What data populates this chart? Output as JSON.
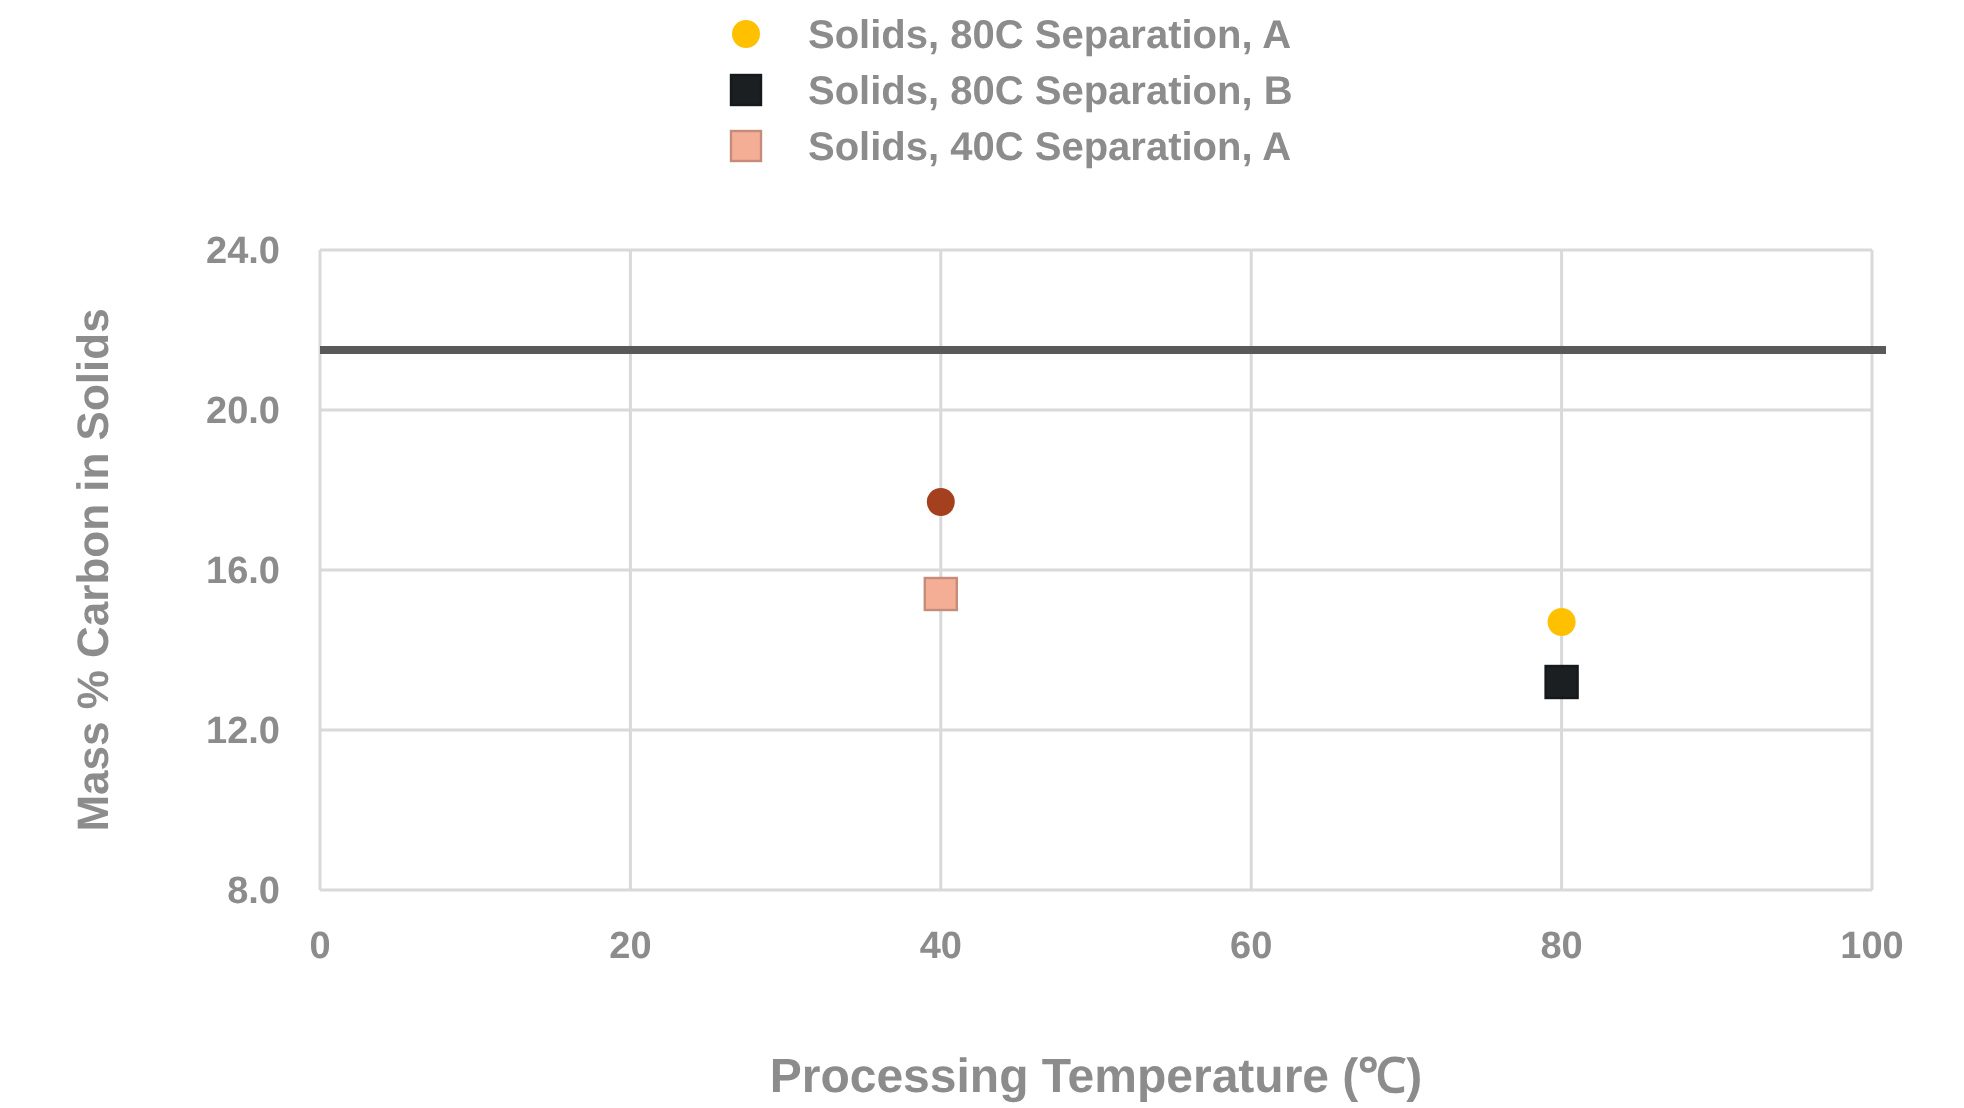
{
  "chart_data": {
    "type": "scatter",
    "xlabel": "Processing Temperature (℃)",
    "ylabel": "Mass % Carbon in Solids",
    "x": [
      40,
      80
    ],
    "xlim": [
      0,
      100
    ],
    "xticks": [
      0,
      20,
      40,
      60,
      80,
      100
    ],
    "ylim": [
      8,
      24
    ],
    "yticks": [
      {
        "value": 8,
        "label": "8.0"
      },
      {
        "value": 12,
        "label": "12.0"
      },
      {
        "value": 16,
        "label": "16.0"
      },
      {
        "value": 20,
        "label": "20.0"
      },
      {
        "value": 24,
        "label": "24.0"
      }
    ],
    "grid": true,
    "legend": "top",
    "series": [
      {
        "name": "Solids, 80C Separation, A",
        "color": "#ffc000",
        "marker": "circle",
        "values": [
          null,
          14.7
        ]
      },
      {
        "name": "Solids, 80C Separation, B",
        "color": "#1b1f22",
        "marker": "square",
        "values": [
          null,
          13.2
        ]
      },
      {
        "name": "Solids, 40C Separation, A",
        "color": "#f4ae96",
        "marker": "square",
        "values": [
          15.4,
          null
        ]
      },
      {
        "color": "#a5401e",
        "marker": "circle",
        "values": [
          17.7,
          null
        ]
      }
    ],
    "ref_lines": [
      {
        "axis": "y",
        "value": 21.5,
        "color": "#595959"
      }
    ]
  }
}
